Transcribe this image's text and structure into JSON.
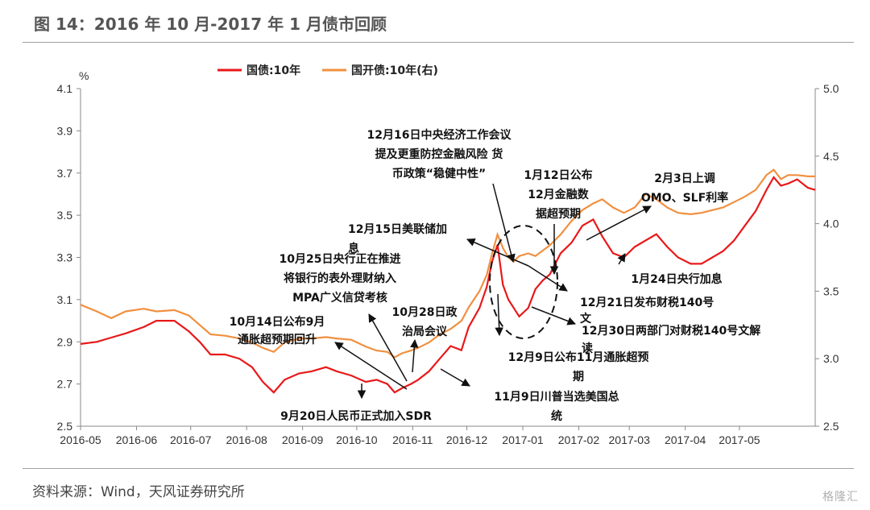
{
  "title": "图 14：2016 年 10 月-2017 年 1 月债市回顾",
  "source": "资料来源：Wind，天风证券研究所",
  "watermark": "格隆汇",
  "chart_data": {
    "type": "line",
    "y_unit_label": "%",
    "x_ticks": [
      "2016-05",
      "2016-06",
      "2016-07",
      "2016-08",
      "2016-09",
      "2016-10",
      "2016-11",
      "2016-12",
      "2017-01",
      "2017-02",
      "2017-03",
      "2017-04",
      "2017-05"
    ],
    "y_left": {
      "range": [
        2.5,
        4.1
      ],
      "ticks": [
        "2.5",
        "2.7",
        "2.9",
        "3.1",
        "3.3",
        "3.5",
        "3.7",
        "3.9",
        "4.1"
      ]
    },
    "y_right": {
      "range": [
        2.5,
        5.0
      ],
      "ticks": [
        "2.5",
        "3.0",
        "3.5",
        "4.0",
        "4.5",
        "5.0"
      ]
    },
    "colors": {
      "gov10y": "#e8191a",
      "cdb10y": "#f09040"
    },
    "series": [
      {
        "name": "国债:10年",
        "axis": "left",
        "points": [
          [
            "2016-05-01",
            2.89
          ],
          [
            "2016-05-10",
            2.9
          ],
          [
            "2016-05-18",
            2.92
          ],
          [
            "2016-05-26",
            2.94
          ],
          [
            "2016-06-05",
            2.97
          ],
          [
            "2016-06-12",
            3.0
          ],
          [
            "2016-06-22",
            3.0
          ],
          [
            "2016-06-30",
            2.95
          ],
          [
            "2016-07-06",
            2.9
          ],
          [
            "2016-07-12",
            2.84
          ],
          [
            "2016-07-20",
            2.84
          ],
          [
            "2016-07-28",
            2.82
          ],
          [
            "2016-08-04",
            2.78
          ],
          [
            "2016-08-10",
            2.71
          ],
          [
            "2016-08-16",
            2.66
          ],
          [
            "2016-08-22",
            2.72
          ],
          [
            "2016-08-30",
            2.75
          ],
          [
            "2016-09-06",
            2.76
          ],
          [
            "2016-09-14",
            2.78
          ],
          [
            "2016-09-20",
            2.76
          ],
          [
            "2016-09-28",
            2.74
          ],
          [
            "2016-10-06",
            2.71
          ],
          [
            "2016-10-12",
            2.72
          ],
          [
            "2016-10-18",
            2.7
          ],
          [
            "2016-10-22",
            2.66
          ],
          [
            "2016-10-26",
            2.68
          ],
          [
            "2016-10-31",
            2.7
          ],
          [
            "2016-11-04",
            2.72
          ],
          [
            "2016-11-10",
            2.76
          ],
          [
            "2016-11-16",
            2.82
          ],
          [
            "2016-11-22",
            2.88
          ],
          [
            "2016-11-28",
            2.86
          ],
          [
            "2016-12-02",
            2.97
          ],
          [
            "2016-12-08",
            3.06
          ],
          [
            "2016-12-12",
            3.16
          ],
          [
            "2016-12-15",
            3.28
          ],
          [
            "2016-12-18",
            3.36
          ],
          [
            "2016-12-21",
            3.17
          ],
          [
            "2016-12-24",
            3.1
          ],
          [
            "2016-12-27",
            3.06
          ],
          [
            "2016-12-30",
            3.02
          ],
          [
            "2017-01-04",
            3.06
          ],
          [
            "2017-01-08",
            3.15
          ],
          [
            "2017-01-12",
            3.19
          ],
          [
            "2017-01-16",
            3.22
          ],
          [
            "2017-01-22",
            3.32
          ],
          [
            "2017-01-28",
            3.37
          ],
          [
            "2017-02-03",
            3.45
          ],
          [
            "2017-02-09",
            3.48
          ],
          [
            "2017-02-14",
            3.4
          ],
          [
            "2017-02-20",
            3.32
          ],
          [
            "2017-02-26",
            3.3
          ],
          [
            "2017-03-04",
            3.35
          ],
          [
            "2017-03-10",
            3.38
          ],
          [
            "2017-03-16",
            3.41
          ],
          [
            "2017-03-22",
            3.35
          ],
          [
            "2017-03-28",
            3.3
          ],
          [
            "2017-04-04",
            3.27
          ],
          [
            "2017-04-10",
            3.27
          ],
          [
            "2017-04-16",
            3.3
          ],
          [
            "2017-04-22",
            3.33
          ],
          [
            "2017-04-28",
            3.38
          ],
          [
            "2017-05-04",
            3.45
          ],
          [
            "2017-05-10",
            3.52
          ],
          [
            "2017-05-16",
            3.62
          ],
          [
            "2017-05-20",
            3.68
          ],
          [
            "2017-05-24",
            3.64
          ],
          [
            "2017-05-28",
            3.65
          ],
          [
            "2017-06-02",
            3.67
          ],
          [
            "2017-06-08",
            3.63
          ],
          [
            "2017-06-12",
            3.62
          ]
        ]
      },
      {
        "name": "国开债:10年(右)",
        "axis": "right",
        "points": [
          [
            "2016-05-01",
            3.4
          ],
          [
            "2016-05-10",
            3.35
          ],
          [
            "2016-05-18",
            3.3
          ],
          [
            "2016-05-26",
            3.35
          ],
          [
            "2016-06-05",
            3.37
          ],
          [
            "2016-06-12",
            3.35
          ],
          [
            "2016-06-22",
            3.36
          ],
          [
            "2016-06-30",
            3.32
          ],
          [
            "2016-07-06",
            3.25
          ],
          [
            "2016-07-12",
            3.18
          ],
          [
            "2016-07-20",
            3.17
          ],
          [
            "2016-07-28",
            3.15
          ],
          [
            "2016-08-04",
            3.12
          ],
          [
            "2016-08-10",
            3.08
          ],
          [
            "2016-08-16",
            3.05
          ],
          [
            "2016-08-22",
            3.12
          ],
          [
            "2016-08-30",
            3.15
          ],
          [
            "2016-09-06",
            3.15
          ],
          [
            "2016-09-14",
            3.16
          ],
          [
            "2016-09-20",
            3.15
          ],
          [
            "2016-09-28",
            3.14
          ],
          [
            "2016-10-06",
            3.09
          ],
          [
            "2016-10-12",
            3.06
          ],
          [
            "2016-10-18",
            3.05
          ],
          [
            "2016-10-22",
            3.01
          ],
          [
            "2016-10-26",
            3.04
          ],
          [
            "2016-10-31",
            3.06
          ],
          [
            "2016-11-04",
            3.08
          ],
          [
            "2016-11-10",
            3.12
          ],
          [
            "2016-11-16",
            3.18
          ],
          [
            "2016-11-22",
            3.22
          ],
          [
            "2016-11-28",
            3.28
          ],
          [
            "2016-12-02",
            3.38
          ],
          [
            "2016-12-08",
            3.5
          ],
          [
            "2016-12-12",
            3.62
          ],
          [
            "2016-12-15",
            3.78
          ],
          [
            "2016-12-18",
            3.92
          ],
          [
            "2016-12-21",
            3.82
          ],
          [
            "2016-12-24",
            3.75
          ],
          [
            "2016-12-27",
            3.72
          ],
          [
            "2016-12-30",
            3.76
          ],
          [
            "2017-01-04",
            3.78
          ],
          [
            "2017-01-08",
            3.76
          ],
          [
            "2017-01-12",
            3.8
          ],
          [
            "2017-01-16",
            3.84
          ],
          [
            "2017-01-22",
            3.92
          ],
          [
            "2017-01-28",
            4.02
          ],
          [
            "2017-02-03",
            4.1
          ],
          [
            "2017-02-09",
            4.15
          ],
          [
            "2017-02-14",
            4.18
          ],
          [
            "2017-02-20",
            4.12
          ],
          [
            "2017-02-26",
            4.08
          ],
          [
            "2017-03-04",
            4.12
          ],
          [
            "2017-03-10",
            4.22
          ],
          [
            "2017-03-16",
            4.18
          ],
          [
            "2017-03-22",
            4.12
          ],
          [
            "2017-03-28",
            4.08
          ],
          [
            "2017-04-04",
            4.07
          ],
          [
            "2017-04-10",
            4.08
          ],
          [
            "2017-04-16",
            4.1
          ],
          [
            "2017-04-22",
            4.12
          ],
          [
            "2017-04-28",
            4.16
          ],
          [
            "2017-05-04",
            4.2
          ],
          [
            "2017-05-10",
            4.25
          ],
          [
            "2017-05-16",
            4.36
          ],
          [
            "2017-05-20",
            4.4
          ],
          [
            "2017-05-24",
            4.33
          ],
          [
            "2017-05-28",
            4.36
          ],
          [
            "2017-06-02",
            4.36
          ],
          [
            "2017-06-08",
            4.35
          ],
          [
            "2017-06-12",
            4.35
          ]
        ]
      }
    ],
    "annotations": [
      {
        "id": "a1",
        "lines": [
          "12月16日中央经济工作会议",
          "提及更重防控金融风险 货",
          "币政策“稳健中性”"
        ]
      },
      {
        "id": "a2",
        "lines": [
          "1月12日公布",
          "12月金融数",
          "据超预期"
        ]
      },
      {
        "id": "a3",
        "lines": [
          "2月3日上调",
          "OMO、SLF利率"
        ]
      },
      {
        "id": "a4",
        "lines": [
          "12月15日美联储加",
          "息"
        ]
      },
      {
        "id": "a5",
        "lines": [
          "10月25日央行正在推进",
          "将银行的表外理财纳入",
          "MPA广义信贷考核"
        ]
      },
      {
        "id": "a6",
        "lines": [
          "1月24日央行加息"
        ]
      },
      {
        "id": "a7",
        "lines": [
          "10月14日公布9月",
          "通胀超预期回升"
        ]
      },
      {
        "id": "a8",
        "lines": [
          "10月28日政",
          "治局会议"
        ]
      },
      {
        "id": "a9",
        "lines": [
          "12月21日发布财税140号",
          "文"
        ]
      },
      {
        "id": "a10",
        "lines": [
          "12月30日两部门对财税140号文解",
          "读"
        ]
      },
      {
        "id": "a11",
        "lines": [
          "12月9日公布11月通胀超预",
          "期"
        ]
      },
      {
        "id": "a12",
        "lines": [
          "11月9日川普当选美国总",
          "统"
        ]
      },
      {
        "id": "a13",
        "lines": [
          "9月20日人民币正式加入SDR"
        ]
      }
    ]
  }
}
